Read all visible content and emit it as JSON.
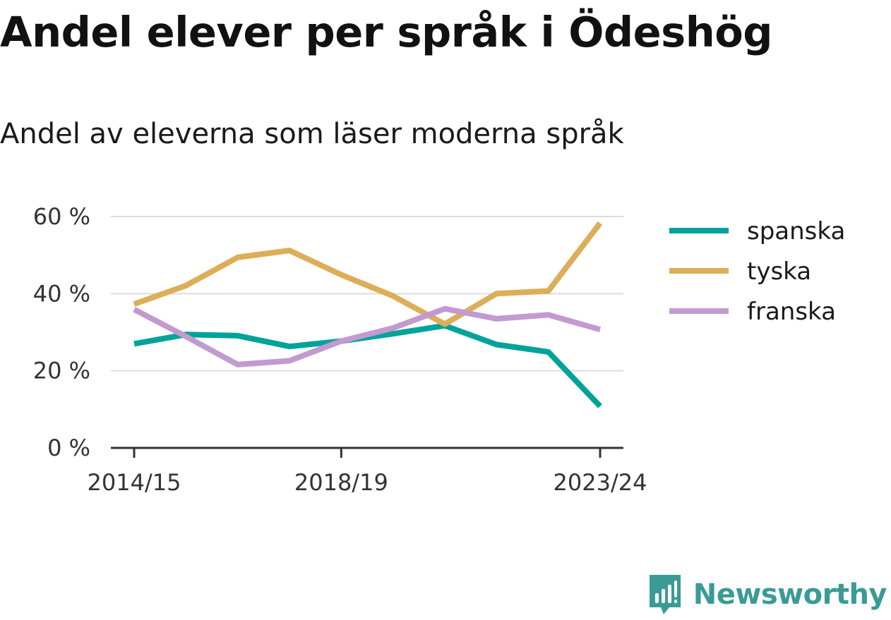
{
  "header": {
    "title": "Andel elever per språk i Ödeshög",
    "subtitle": "Andel av eleverna som läser moderna språk"
  },
  "brand": {
    "name": "Newsworthy",
    "icon": "newsworthy-logo-icon",
    "color": "#3a9b96"
  },
  "chart_data": {
    "type": "line",
    "title": "Andel elever per språk i Ödeshög",
    "subtitle": "Andel av eleverna som läser moderna språk",
    "x": [
      "2014/15",
      "2015/16",
      "2016/17",
      "2017/18",
      "2018/19",
      "2019/20",
      "2020/21",
      "2021/22",
      "2022/23",
      "2023/24"
    ],
    "x_tick_labels": [
      "2014/15",
      "2018/19",
      "2023/24"
    ],
    "y_tick_labels": [
      "0 %",
      "20 %",
      "40 %",
      "60 %"
    ],
    "ylim": [
      0,
      60
    ],
    "y_ticks": [
      0,
      20,
      40,
      60
    ],
    "grid": true,
    "legend_position": "right",
    "series": [
      {
        "name": "spanska",
        "color": "#00a39a",
        "values": [
          27.0,
          29.4,
          29.1,
          26.3,
          27.7,
          29.6,
          31.7,
          26.8,
          24.9,
          10.8
        ]
      },
      {
        "name": "tyska",
        "color": "#dcae58",
        "values": [
          37.3,
          42.1,
          49.4,
          51.2,
          44.9,
          39.4,
          32.1,
          40.0,
          40.7,
          58.3
        ]
      },
      {
        "name": "franska",
        "color": "#c39ad0",
        "values": [
          35.9,
          28.9,
          21.6,
          22.6,
          27.7,
          31.1,
          36.1,
          33.5,
          34.5,
          30.7
        ]
      }
    ]
  }
}
